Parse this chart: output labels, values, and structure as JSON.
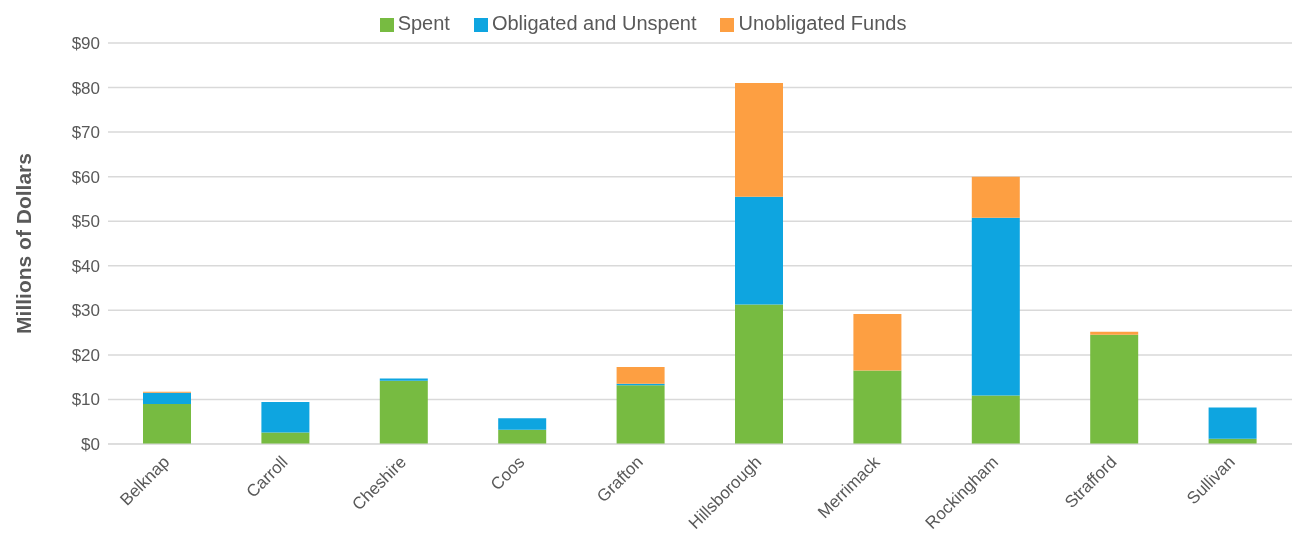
{
  "chart_data": {
    "type": "bar",
    "stacked": true,
    "ylabel": "Millions of Dollars",
    "categories": [
      "Belknap",
      "Carroll",
      "Cheshire",
      "Coos",
      "Grafton",
      "Hillsborough",
      "Merrimack",
      "Rockingham",
      "Strafford",
      "Sullivan"
    ],
    "series": [
      {
        "name": "Spent",
        "color": "#77bb41",
        "values": [
          9,
          2.6,
          14.2,
          3.2,
          13.2,
          31.3,
          16.5,
          10.9,
          24.5,
          1.2
        ]
      },
      {
        "name": "Obligated and Unspent",
        "color": "#0ea5e0",
        "values": [
          2.5,
          6.8,
          0.5,
          2.6,
          0.3,
          24.2,
          0,
          39.9,
          0,
          7
        ]
      },
      {
        "name": "Unobligated Funds",
        "color": "#fd9f42",
        "values": [
          0.2,
          0,
          0,
          0,
          3.8,
          25.5,
          12.7,
          9.2,
          0.7,
          0
        ]
      }
    ],
    "ylim": [
      0,
      90
    ],
    "yticks": [
      {
        "value": 0,
        "label": "$0"
      },
      {
        "value": 10,
        "label": "$10"
      },
      {
        "value": 20,
        "label": "$20"
      },
      {
        "value": 30,
        "label": "$30"
      },
      {
        "value": 40,
        "label": "$40"
      },
      {
        "value": 50,
        "label": "$50"
      },
      {
        "value": 60,
        "label": "$60"
      },
      {
        "value": 70,
        "label": "$70"
      },
      {
        "value": 80,
        "label": "$80"
      },
      {
        "value": 90,
        "label": "$90"
      }
    ],
    "grid": "y",
    "legend": "top"
  }
}
